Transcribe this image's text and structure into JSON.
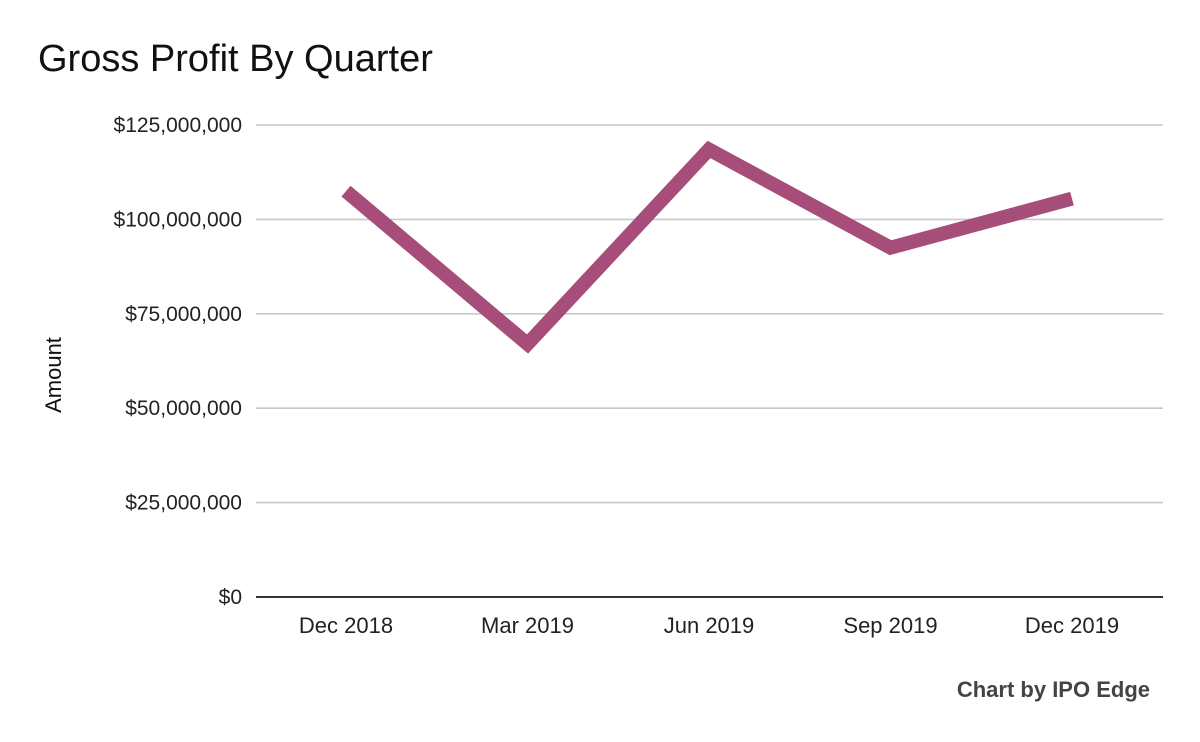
{
  "chart_data": {
    "type": "line",
    "title": "Gross Profit By Quarter",
    "xlabel": "",
    "ylabel": "Amount",
    "categories": [
      "Dec 2018",
      "Mar 2019",
      "Jun 2019",
      "Sep 2019",
      "Dec 2019"
    ],
    "series": [
      {
        "name": "Gross Profit",
        "values": [
          107500000,
          67000000,
          118500000,
          92500000,
          105500000
        ],
        "color": "#a64d79"
      }
    ],
    "ylim": [
      0,
      125000000
    ],
    "yticks": [
      0,
      25000000,
      50000000,
      75000000,
      100000000,
      125000000
    ],
    "ytick_labels": [
      "$0",
      "$25,000,000",
      "$50,000,000",
      "$75,000,000",
      "$100,000,000",
      "$125,000,000"
    ],
    "grid": true,
    "legend": "none"
  },
  "credit": "Chart by IPO Edge"
}
